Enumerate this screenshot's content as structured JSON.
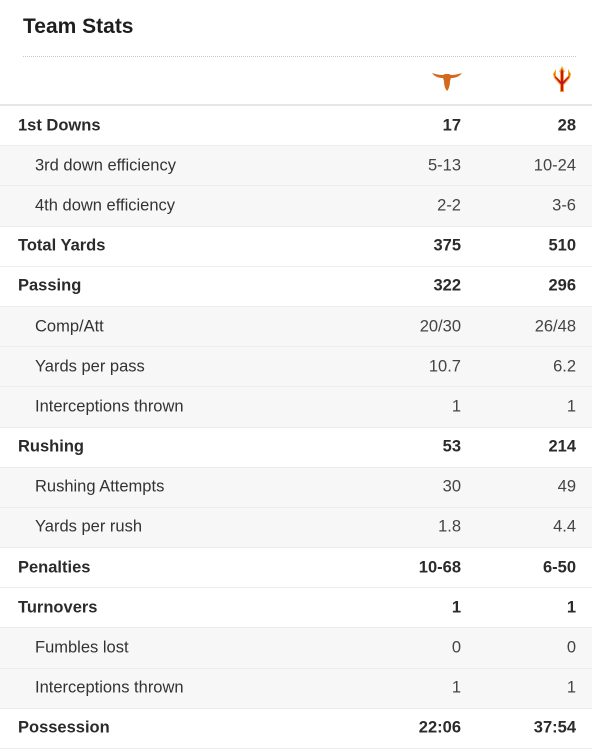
{
  "header": {
    "title": "Team Stats"
  },
  "teams": [
    {
      "icon": "longhorn-logo-icon",
      "color": "#d2691e"
    },
    {
      "icon": "pitchfork-logo-icon",
      "color": "#c8102e",
      "accent": "#f4a51c"
    }
  ],
  "rows": [
    {
      "label": "1st Downs",
      "type": "main",
      "team1": "17",
      "team2": "28"
    },
    {
      "label": "3rd down efficiency",
      "type": "sub",
      "team1": "5-13",
      "team2": "10-24"
    },
    {
      "label": "4th down efficiency",
      "type": "sub",
      "team1": "2-2",
      "team2": "3-6"
    },
    {
      "label": "Total Yards",
      "type": "main",
      "team1": "375",
      "team2": "510"
    },
    {
      "label": "Passing",
      "type": "main",
      "team1": "322",
      "team2": "296"
    },
    {
      "label": "Comp/Att",
      "type": "sub",
      "team1": "20/30",
      "team2": "26/48"
    },
    {
      "label": "Yards per pass",
      "type": "sub",
      "team1": "10.7",
      "team2": "6.2"
    },
    {
      "label": "Interceptions thrown",
      "type": "sub",
      "team1": "1",
      "team2": "1"
    },
    {
      "label": "Rushing",
      "type": "main",
      "team1": "53",
      "team2": "214"
    },
    {
      "label": "Rushing Attempts",
      "type": "sub",
      "team1": "30",
      "team2": "49"
    },
    {
      "label": "Yards per rush",
      "type": "sub",
      "team1": "1.8",
      "team2": "4.4"
    },
    {
      "label": "Penalties",
      "type": "main",
      "team1": "10-68",
      "team2": "6-50"
    },
    {
      "label": "Turnovers",
      "type": "main",
      "team1": "1",
      "team2": "1"
    },
    {
      "label": "Fumbles lost",
      "type": "sub",
      "team1": "0",
      "team2": "0"
    },
    {
      "label": "Interceptions thrown",
      "type": "sub",
      "team1": "1",
      "team2": "1"
    },
    {
      "label": "Possession",
      "type": "main",
      "team1": "22:06",
      "team2": "37:54"
    }
  ]
}
